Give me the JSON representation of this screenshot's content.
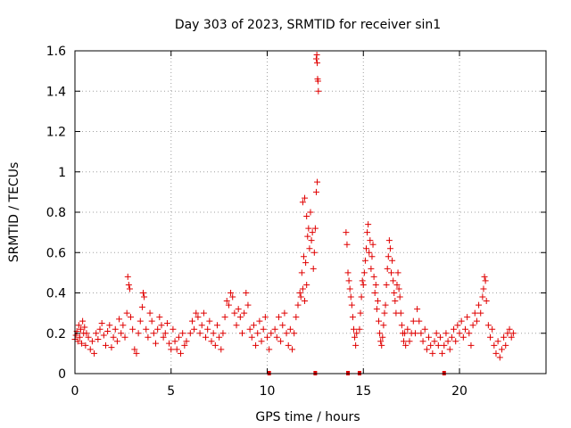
{
  "chart_data": {
    "type": "scatter",
    "title": "Day 303 of 2023, SRMTID for receiver sin1",
    "xlabel": "GPS time / hours",
    "ylabel": "SRMTID / TECUs",
    "xlim": [
      0,
      24.5
    ],
    "ylim": [
      0,
      1.6
    ],
    "xticks": [
      0,
      5,
      10,
      15,
      20
    ],
    "xtick_labels": [
      "0",
      "5",
      "10",
      "15",
      "20"
    ],
    "yticks": [
      0,
      0.2,
      0.4,
      0.6,
      0.8,
      1.0,
      1.2,
      1.4,
      1.6
    ],
    "ytick_labels": [
      "0",
      "0.2",
      "0.4",
      "0.6",
      "0.8",
      "1",
      "1.2",
      "1.4",
      "1.6"
    ],
    "grid": true,
    "color": "#e00000",
    "marker": "plus",
    "series": [
      {
        "name": "SRMTID",
        "points": [
          [
            0.0,
            0.17
          ],
          [
            0.05,
            0.19
          ],
          [
            0.1,
            0.21
          ],
          [
            0.15,
            0.16
          ],
          [
            0.2,
            0.24
          ],
          [
            0.25,
            0.18
          ],
          [
            0.3,
            0.22
          ],
          [
            0.35,
            0.15
          ],
          [
            0.4,
            0.26
          ],
          [
            0.45,
            0.2
          ],
          [
            0.5,
            0.23
          ],
          [
            0.55,
            0.14
          ],
          [
            0.6,
            0.2
          ],
          [
            0.7,
            0.18
          ],
          [
            0.8,
            0.12
          ],
          [
            0.9,
            0.16
          ],
          [
            1.0,
            0.1
          ],
          [
            1.1,
            0.2
          ],
          [
            1.2,
            0.17
          ],
          [
            1.3,
            0.22
          ],
          [
            1.4,
            0.25
          ],
          [
            1.5,
            0.19
          ],
          [
            1.6,
            0.14
          ],
          [
            1.7,
            0.21
          ],
          [
            1.8,
            0.24
          ],
          [
            1.9,
            0.13
          ],
          [
            2.0,
            0.18
          ],
          [
            2.1,
            0.22
          ],
          [
            2.2,
            0.16
          ],
          [
            2.3,
            0.27
          ],
          [
            2.4,
            0.2
          ],
          [
            2.5,
            0.24
          ],
          [
            2.6,
            0.18
          ],
          [
            2.7,
            0.3
          ],
          [
            2.75,
            0.48
          ],
          [
            2.8,
            0.44
          ],
          [
            2.85,
            0.42
          ],
          [
            2.9,
            0.28
          ],
          [
            3.0,
            0.22
          ],
          [
            3.1,
            0.12
          ],
          [
            3.2,
            0.1
          ],
          [
            3.3,
            0.2
          ],
          [
            3.4,
            0.26
          ],
          [
            3.5,
            0.33
          ],
          [
            3.55,
            0.4
          ],
          [
            3.6,
            0.38
          ],
          [
            3.7,
            0.22
          ],
          [
            3.8,
            0.18
          ],
          [
            3.9,
            0.3
          ],
          [
            4.0,
            0.26
          ],
          [
            4.1,
            0.2
          ],
          [
            4.2,
            0.15
          ],
          [
            4.3,
            0.22
          ],
          [
            4.4,
            0.28
          ],
          [
            4.5,
            0.24
          ],
          [
            4.6,
            0.18
          ],
          [
            4.7,
            0.2
          ],
          [
            4.8,
            0.25
          ],
          [
            4.9,
            0.15
          ],
          [
            5.0,
            0.12
          ],
          [
            5.1,
            0.22
          ],
          [
            5.2,
            0.16
          ],
          [
            5.3,
            0.12
          ],
          [
            5.4,
            0.18
          ],
          [
            5.5,
            0.1
          ],
          [
            5.6,
            0.2
          ],
          [
            5.7,
            0.14
          ],
          [
            5.8,
            0.16
          ],
          [
            6.0,
            0.2
          ],
          [
            6.1,
            0.26
          ],
          [
            6.2,
            0.22
          ],
          [
            6.3,
            0.3
          ],
          [
            6.4,
            0.28
          ],
          [
            6.5,
            0.2
          ],
          [
            6.6,
            0.24
          ],
          [
            6.7,
            0.3
          ],
          [
            6.8,
            0.18
          ],
          [
            6.9,
            0.22
          ],
          [
            7.0,
            0.26
          ],
          [
            7.1,
            0.16
          ],
          [
            7.2,
            0.2
          ],
          [
            7.3,
            0.14
          ],
          [
            7.4,
            0.24
          ],
          [
            7.5,
            0.18
          ],
          [
            7.6,
            0.12
          ],
          [
            7.7,
            0.2
          ],
          [
            7.8,
            0.28
          ],
          [
            7.9,
            0.36
          ],
          [
            8.0,
            0.34
          ],
          [
            8.1,
            0.4
          ],
          [
            8.2,
            0.38
          ],
          [
            8.3,
            0.3
          ],
          [
            8.4,
            0.24
          ],
          [
            8.5,
            0.32
          ],
          [
            8.6,
            0.28
          ],
          [
            8.7,
            0.2
          ],
          [
            8.8,
            0.3
          ],
          [
            8.9,
            0.4
          ],
          [
            9.0,
            0.34
          ],
          [
            9.1,
            0.22
          ],
          [
            9.2,
            0.18
          ],
          [
            9.3,
            0.24
          ],
          [
            9.4,
            0.14
          ],
          [
            9.5,
            0.2
          ],
          [
            9.6,
            0.26
          ],
          [
            9.7,
            0.16
          ],
          [
            9.8,
            0.22
          ],
          [
            9.9,
            0.28
          ],
          [
            10.0,
            0.18
          ],
          [
            10.1,
            0.12
          ],
          [
            10.2,
            0.2
          ],
          [
            10.4,
            0.22
          ],
          [
            10.5,
            0.18
          ],
          [
            10.6,
            0.28
          ],
          [
            10.7,
            0.16
          ],
          [
            10.8,
            0.24
          ],
          [
            10.9,
            0.3
          ],
          [
            11.0,
            0.2
          ],
          [
            11.1,
            0.14
          ],
          [
            11.2,
            0.22
          ],
          [
            11.3,
            0.12
          ],
          [
            11.4,
            0.2
          ],
          [
            11.5,
            0.28
          ],
          [
            11.6,
            0.34
          ],
          [
            11.7,
            0.4
          ],
          [
            11.75,
            0.38
          ],
          [
            11.8,
            0.5
          ],
          [
            11.85,
            0.42
          ],
          [
            11.9,
            0.58
          ],
          [
            11.95,
            0.36
          ],
          [
            12.0,
            0.55
          ],
          [
            12.05,
            0.44
          ],
          [
            12.1,
            0.68
          ],
          [
            12.15,
            0.72
          ],
          [
            12.2,
            0.62
          ],
          [
            12.25,
            0.8
          ],
          [
            12.3,
            0.66
          ],
          [
            12.35,
            0.7
          ],
          [
            11.85,
            0.85
          ],
          [
            11.95,
            0.87
          ],
          [
            12.05,
            0.78
          ],
          [
            12.4,
            0.52
          ],
          [
            12.45,
            0.6
          ],
          [
            12.5,
            0.72
          ],
          [
            12.55,
            0.9
          ],
          [
            12.6,
            0.95
          ],
          [
            12.55,
            1.56
          ],
          [
            12.58,
            1.58
          ],
          [
            12.6,
            1.54
          ],
          [
            12.62,
            1.46
          ],
          [
            12.64,
            1.45
          ],
          [
            12.66,
            1.4
          ],
          [
            14.1,
            0.7
          ],
          [
            14.15,
            0.64
          ],
          [
            14.2,
            0.5
          ],
          [
            14.25,
            0.46
          ],
          [
            14.3,
            0.42
          ],
          [
            14.35,
            0.38
          ],
          [
            14.4,
            0.34
          ],
          [
            14.45,
            0.28
          ],
          [
            14.5,
            0.22
          ],
          [
            14.55,
            0.18
          ],
          [
            14.6,
            0.14
          ],
          [
            14.65,
            0.2
          ],
          [
            14.8,
            0.22
          ],
          [
            14.85,
            0.3
          ],
          [
            14.9,
            0.38
          ],
          [
            14.95,
            0.46
          ],
          [
            15.0,
            0.44
          ],
          [
            15.05,
            0.5
          ],
          [
            15.1,
            0.56
          ],
          [
            15.15,
            0.62
          ],
          [
            15.2,
            0.7
          ],
          [
            15.25,
            0.74
          ],
          [
            15.3,
            0.6
          ],
          [
            15.35,
            0.66
          ],
          [
            15.4,
            0.52
          ],
          [
            15.45,
            0.58
          ],
          [
            15.5,
            0.64
          ],
          [
            15.55,
            0.48
          ],
          [
            15.6,
            0.4
          ],
          [
            15.65,
            0.44
          ],
          [
            15.7,
            0.32
          ],
          [
            15.75,
            0.36
          ],
          [
            15.8,
            0.26
          ],
          [
            15.85,
            0.2
          ],
          [
            15.9,
            0.16
          ],
          [
            15.95,
            0.14
          ],
          [
            16.0,
            0.18
          ],
          [
            16.05,
            0.24
          ],
          [
            16.1,
            0.3
          ],
          [
            16.15,
            0.34
          ],
          [
            16.2,
            0.44
          ],
          [
            16.25,
            0.52
          ],
          [
            16.3,
            0.58
          ],
          [
            16.35,
            0.66
          ],
          [
            16.4,
            0.62
          ],
          [
            16.45,
            0.5
          ],
          [
            16.5,
            0.56
          ],
          [
            16.55,
            0.46
          ],
          [
            16.6,
            0.4
          ],
          [
            16.65,
            0.36
          ],
          [
            16.7,
            0.3
          ],
          [
            16.75,
            0.44
          ],
          [
            16.8,
            0.5
          ],
          [
            16.85,
            0.42
          ],
          [
            16.9,
            0.38
          ],
          [
            16.95,
            0.3
          ],
          [
            17.0,
            0.24
          ],
          [
            17.05,
            0.2
          ],
          [
            17.1,
            0.16
          ],
          [
            17.15,
            0.2
          ],
          [
            17.2,
            0.14
          ],
          [
            17.3,
            0.22
          ],
          [
            17.4,
            0.16
          ],
          [
            17.5,
            0.2
          ],
          [
            17.6,
            0.26
          ],
          [
            17.7,
            0.2
          ],
          [
            17.8,
            0.32
          ],
          [
            17.9,
            0.26
          ],
          [
            18.0,
            0.2
          ],
          [
            18.1,
            0.16
          ],
          [
            18.2,
            0.22
          ],
          [
            18.3,
            0.12
          ],
          [
            18.4,
            0.18
          ],
          [
            18.5,
            0.14
          ],
          [
            18.6,
            0.1
          ],
          [
            18.7,
            0.16
          ],
          [
            18.8,
            0.2
          ],
          [
            18.9,
            0.14
          ],
          [
            19.0,
            0.18
          ],
          [
            19.1,
            0.1
          ],
          [
            19.2,
            0.14
          ],
          [
            19.3,
            0.2
          ],
          [
            19.4,
            0.16
          ],
          [
            19.5,
            0.12
          ],
          [
            19.6,
            0.18
          ],
          [
            19.7,
            0.22
          ],
          [
            19.8,
            0.16
          ],
          [
            19.9,
            0.24
          ],
          [
            20.0,
            0.2
          ],
          [
            20.1,
            0.26
          ],
          [
            20.2,
            0.18
          ],
          [
            20.3,
            0.22
          ],
          [
            20.4,
            0.28
          ],
          [
            20.5,
            0.2
          ],
          [
            20.6,
            0.14
          ],
          [
            20.7,
            0.24
          ],
          [
            20.8,
            0.3
          ],
          [
            20.9,
            0.26
          ],
          [
            21.0,
            0.34
          ],
          [
            21.1,
            0.3
          ],
          [
            21.2,
            0.38
          ],
          [
            21.25,
            0.42
          ],
          [
            21.3,
            0.48
          ],
          [
            21.35,
            0.46
          ],
          [
            21.4,
            0.36
          ],
          [
            21.5,
            0.24
          ],
          [
            21.6,
            0.18
          ],
          [
            21.7,
            0.22
          ],
          [
            21.8,
            0.14
          ],
          [
            21.9,
            0.1
          ],
          [
            22.0,
            0.16
          ],
          [
            22.1,
            0.08
          ],
          [
            22.2,
            0.12
          ],
          [
            22.3,
            0.18
          ],
          [
            22.4,
            0.14
          ],
          [
            22.5,
            0.2
          ],
          [
            22.6,
            0.22
          ],
          [
            22.7,
            0.18
          ],
          [
            22.8,
            0.2
          ]
        ]
      }
    ],
    "gap_markers_x": [
      10.1,
      12.5,
      14.2,
      14.8,
      19.2
    ]
  }
}
